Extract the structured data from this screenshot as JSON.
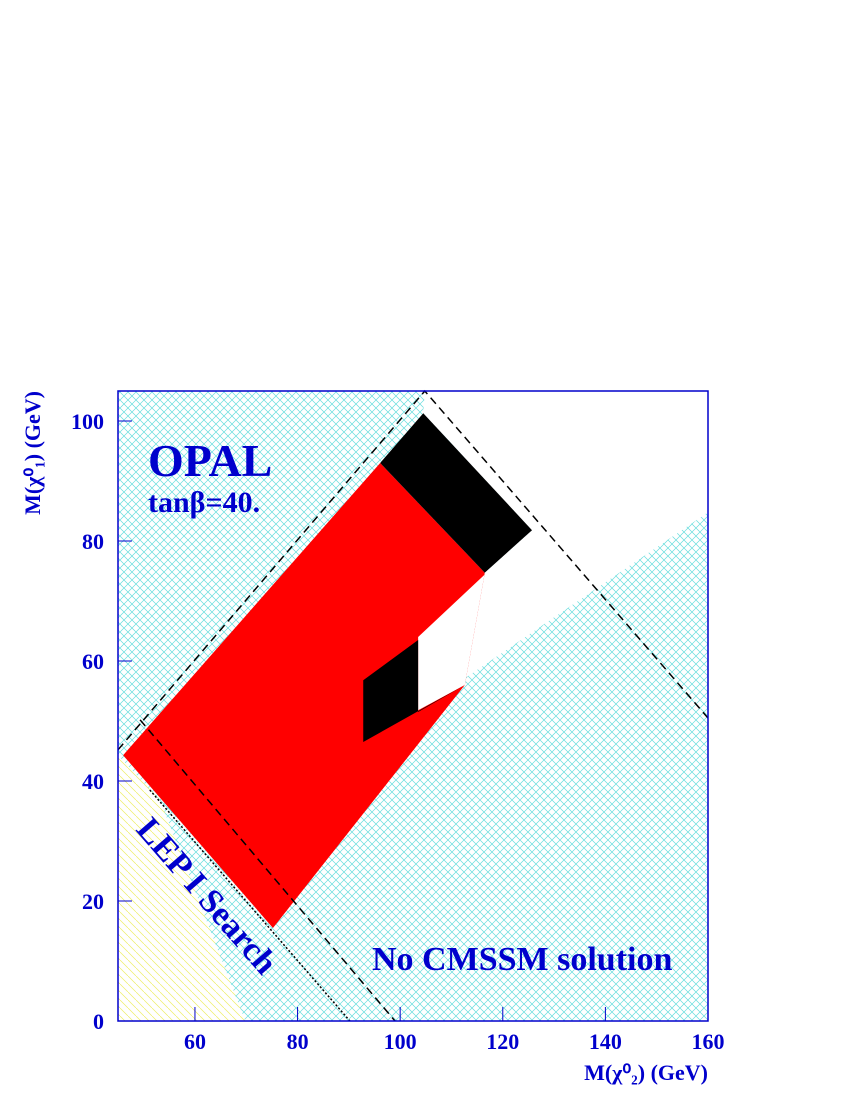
{
  "chart_data": {
    "type": "polygon",
    "x_label": "M(χ⁰₂) (GeV)",
    "y_label": "M(χ⁰₁) (GeV)",
    "xlim": [
      45,
      160
    ],
    "ylim": [
      0,
      105
    ],
    "xticks": [
      60,
      80,
      100,
      120,
      140,
      160
    ],
    "yticks": [
      0,
      20,
      40,
      60,
      80,
      100
    ],
    "annotations": [
      "OPAL",
      "tanβ=40.",
      "LEP I Search",
      "No CMSSM solution"
    ],
    "regions": [
      {
        "color": "#ffff99",
        "x": [
          45,
          45,
          69.8,
          53.2
        ],
        "y": [
          44.3,
          0,
          0,
          36.8
        ]
      },
      {
        "color": "#ffffff",
        "x": [
          104.8,
          160,
          160,
          103.5,
          103.5,
          125.7,
          104.5
        ],
        "y": [
          105,
          105,
          84.8,
          51.8,
          64,
          81.8,
          101.3
        ]
      },
      {
        "color": "#ff0000",
        "x": [
          46,
          96.1,
          116.5,
          112.6,
          75.2
        ],
        "y": [
          44.3,
          93,
          74.7,
          56,
          15.5
        ]
      },
      {
        "color": "#000000",
        "x": [
          96.1,
          104.5,
          125.7,
          116.5
        ],
        "y": [
          93,
          101.3,
          81.8,
          74.7
        ]
      },
      {
        "color": "#ffffff",
        "x": [
          103.5,
          125.7,
          116.5,
          112.6,
          103.5
        ],
        "y": [
          64,
          81.8,
          74.7,
          56,
          51.8
        ]
      },
      {
        "color": "#000000",
        "x": [
          92.8,
          103.5,
          103.5,
          112.6,
          92.8
        ],
        "y": [
          56.8,
          63.5,
          51.5,
          56,
          46.5
        ]
      }
    ],
    "lines": [
      {
        "style": "dashed",
        "x": [
          45,
          104.8,
          160
        ],
        "y": [
          45.2,
          105,
          50.5
        ]
      },
      {
        "style": "dashed",
        "x": [
          49.3,
          99
        ],
        "y": [
          50.2,
          0
        ]
      },
      {
        "style": "dotted",
        "x": [
          51.2,
          90.2
        ],
        "y": [
          38.5,
          0
        ]
      }
    ]
  }
}
